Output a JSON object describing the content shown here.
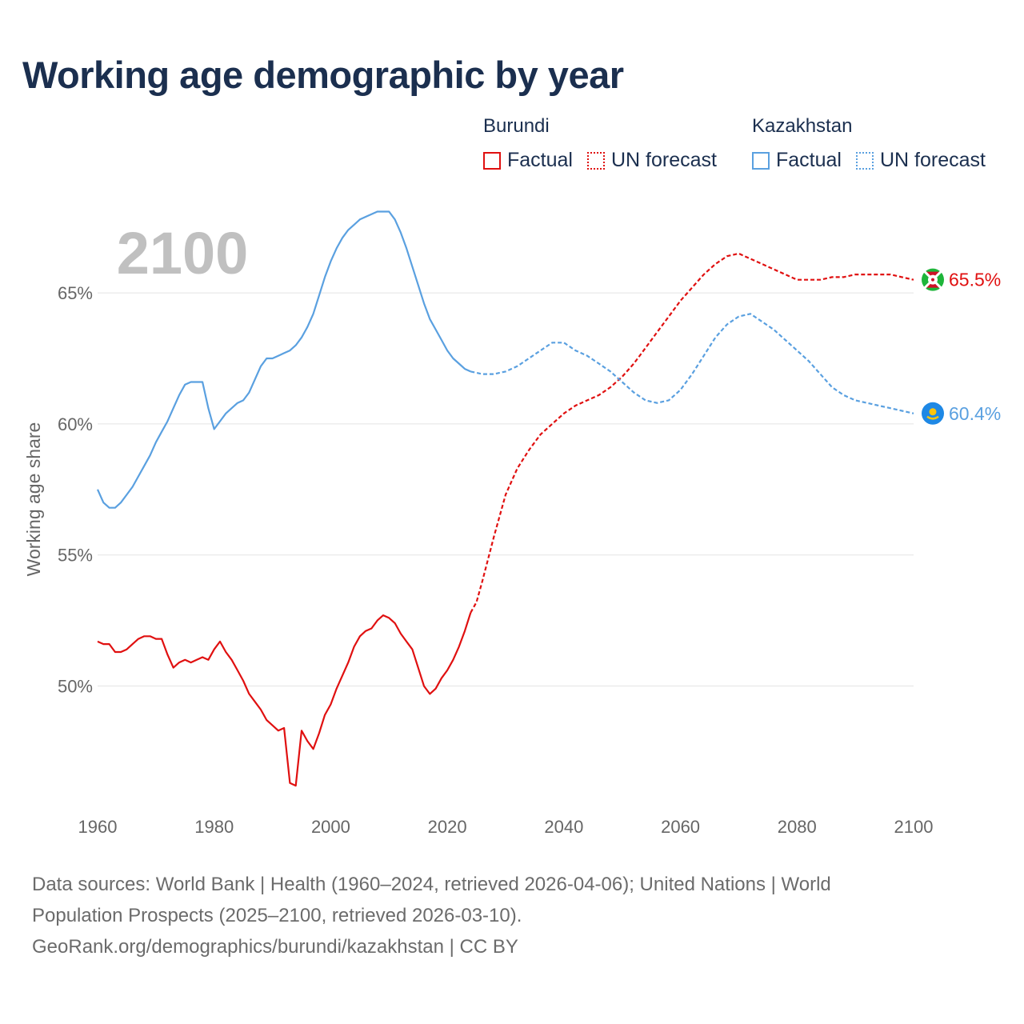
{
  "title": "Working age demographic by year",
  "legend": {
    "groups": [
      {
        "name": "Burundi",
        "color": "#e01010",
        "factual_label": "Factual",
        "forecast_label": "UN forecast"
      },
      {
        "name": "Kazakhstan",
        "color": "#5aa0e0",
        "factual_label": "Factual",
        "forecast_label": "UN forecast"
      }
    ]
  },
  "chart_data": {
    "type": "line",
    "watermark_year": "2100",
    "ylabel": "Working age share",
    "xlim": [
      1960,
      2100
    ],
    "ylim": [
      45.5,
      69
    ],
    "x_ticks": [
      1960,
      1980,
      2000,
      2020,
      2040,
      2060,
      2080,
      2100
    ],
    "x_tick_labels": [
      "1960",
      "1980",
      "2000",
      "2020",
      "2040",
      "2060",
      "2080",
      "2100"
    ],
    "y_ticks": [
      50,
      55,
      60,
      65
    ],
    "y_tick_labels": [
      "50%",
      "55%",
      "60%",
      "65%"
    ],
    "forecast_start": 2024,
    "series": [
      {
        "name": "Burundi",
        "color": "#e01010",
        "end_label": "65.5%",
        "flag_icon": "burundi-flag-icon",
        "x": [
          1960,
          1961,
          1962,
          1963,
          1964,
          1965,
          1966,
          1967,
          1968,
          1969,
          1970,
          1971,
          1972,
          1973,
          1974,
          1975,
          1976,
          1977,
          1978,
          1979,
          1980,
          1981,
          1982,
          1983,
          1984,
          1985,
          1986,
          1987,
          1988,
          1989,
          1990,
          1991,
          1992,
          1993,
          1994,
          1995,
          1996,
          1997,
          1998,
          1999,
          2000,
          2001,
          2002,
          2003,
          2004,
          2005,
          2006,
          2007,
          2008,
          2009,
          2010,
          2011,
          2012,
          2013,
          2014,
          2015,
          2016,
          2017,
          2018,
          2019,
          2020,
          2021,
          2022,
          2023,
          2024,
          2025,
          2026,
          2028,
          2030,
          2032,
          2034,
          2036,
          2038,
          2040,
          2042,
          2044,
          2046,
          2048,
          2050,
          2052,
          2054,
          2056,
          2058,
          2060,
          2062,
          2064,
          2066,
          2068,
          2070,
          2072,
          2074,
          2076,
          2078,
          2080,
          2082,
          2084,
          2086,
          2088,
          2090,
          2092,
          2094,
          2096,
          2098,
          2100
        ],
        "values": [
          51.7,
          51.6,
          51.6,
          51.3,
          51.3,
          51.4,
          51.6,
          51.8,
          51.9,
          51.9,
          51.8,
          51.8,
          51.2,
          50.7,
          50.9,
          51.0,
          50.9,
          51.0,
          51.1,
          51.0,
          51.4,
          51.7,
          51.3,
          51.0,
          50.6,
          50.2,
          49.7,
          49.4,
          49.1,
          48.7,
          48.5,
          48.3,
          48.4,
          46.3,
          46.2,
          48.3,
          47.9,
          47.6,
          48.2,
          48.9,
          49.3,
          49.9,
          50.4,
          50.9,
          51.5,
          51.9,
          52.1,
          52.2,
          52.5,
          52.7,
          52.6,
          52.4,
          52.0,
          51.7,
          51.4,
          50.7,
          50.0,
          49.7,
          49.9,
          50.3,
          50.6,
          51.0,
          51.5,
          52.1,
          52.8,
          53.2,
          54.0,
          55.7,
          57.3,
          58.3,
          59.0,
          59.6,
          60.0,
          60.4,
          60.7,
          60.9,
          61.1,
          61.4,
          61.8,
          62.3,
          62.9,
          63.5,
          64.1,
          64.7,
          65.2,
          65.7,
          66.1,
          66.4,
          66.5,
          66.3,
          66.1,
          65.9,
          65.7,
          65.5,
          65.5,
          65.5,
          65.6,
          65.6,
          65.7,
          65.7,
          65.7,
          65.7,
          65.6,
          65.5
        ]
      },
      {
        "name": "Kazakhstan",
        "color": "#5aa0e0",
        "end_label": "60.4%",
        "flag_icon": "kazakhstan-flag-icon",
        "x": [
          1960,
          1961,
          1962,
          1963,
          1964,
          1965,
          1966,
          1967,
          1968,
          1969,
          1970,
          1971,
          1972,
          1973,
          1974,
          1975,
          1976,
          1977,
          1978,
          1979,
          1980,
          1981,
          1982,
          1983,
          1984,
          1985,
          1986,
          1987,
          1988,
          1989,
          1990,
          1991,
          1992,
          1993,
          1994,
          1995,
          1996,
          1997,
          1998,
          1999,
          2000,
          2001,
          2002,
          2003,
          2004,
          2005,
          2006,
          2007,
          2008,
          2009,
          2010,
          2011,
          2012,
          2013,
          2014,
          2015,
          2016,
          2017,
          2018,
          2019,
          2020,
          2021,
          2022,
          2023,
          2024,
          2026,
          2028,
          2030,
          2032,
          2034,
          2036,
          2038,
          2040,
          2042,
          2044,
          2046,
          2048,
          2050,
          2052,
          2054,
          2056,
          2058,
          2060,
          2062,
          2064,
          2066,
          2068,
          2070,
          2072,
          2074,
          2076,
          2078,
          2080,
          2082,
          2084,
          2086,
          2088,
          2090,
          2092,
          2094,
          2096,
          2098,
          2100
        ],
        "values": [
          57.5,
          57.0,
          56.8,
          56.8,
          57.0,
          57.3,
          57.6,
          58.0,
          58.4,
          58.8,
          59.3,
          59.7,
          60.1,
          60.6,
          61.1,
          61.5,
          61.6,
          61.6,
          61.6,
          60.6,
          59.8,
          60.1,
          60.4,
          60.6,
          60.8,
          60.9,
          61.2,
          61.7,
          62.2,
          62.5,
          62.5,
          62.6,
          62.7,
          62.8,
          63.0,
          63.3,
          63.7,
          64.2,
          64.9,
          65.6,
          66.2,
          66.7,
          67.1,
          67.4,
          67.6,
          67.8,
          67.9,
          68.0,
          68.1,
          68.1,
          68.1,
          67.8,
          67.3,
          66.7,
          66.0,
          65.3,
          64.6,
          64.0,
          63.6,
          63.2,
          62.8,
          62.5,
          62.3,
          62.1,
          62.0,
          61.9,
          61.9,
          62.0,
          62.2,
          62.5,
          62.8,
          63.1,
          63.1,
          62.8,
          62.6,
          62.3,
          62.0,
          61.6,
          61.2,
          60.9,
          60.8,
          60.9,
          61.3,
          61.9,
          62.6,
          63.3,
          63.8,
          64.1,
          64.2,
          63.9,
          63.6,
          63.2,
          62.8,
          62.4,
          61.9,
          61.4,
          61.1,
          60.9,
          60.8,
          60.7,
          60.6,
          60.5,
          60.4
        ]
      }
    ]
  },
  "footer": {
    "line1": "Data sources: World Bank | Health (1960–2024, retrieved 2026-04-06); United Nations | World",
    "line2": "Population Prospects (2025–2100, retrieved 2026-03-10).",
    "line3": "GeoRank.org/demographics/burundi/kazakhstan | CC BY"
  }
}
